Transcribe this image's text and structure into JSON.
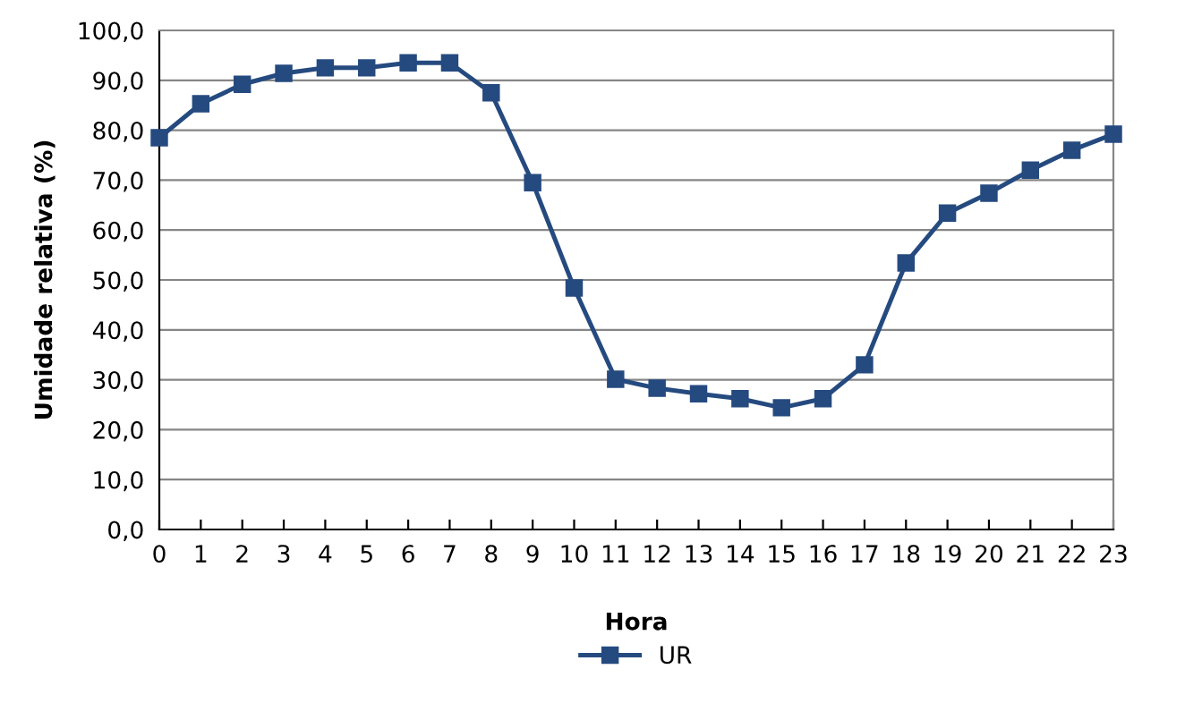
{
  "chart_data": {
    "type": "line",
    "xlabel": "Hora",
    "ylabel": "Umidade relativa (%)",
    "x": [
      0,
      1,
      2,
      3,
      4,
      5,
      6,
      7,
      8,
      9,
      10,
      11,
      12,
      13,
      14,
      15,
      16,
      17,
      18,
      19,
      20,
      21,
      22,
      23
    ],
    "series": [
      {
        "name": "UR",
        "color": "#254a7f",
        "values": [
          78.5,
          85.3,
          89.2,
          91.4,
          92.5,
          92.5,
          93.5,
          93.5,
          87.5,
          69.5,
          48.4,
          30.1,
          28.3,
          27.2,
          26.2,
          24.4,
          26.2,
          33.0,
          53.4,
          63.4,
          67.4,
          72.0,
          76.0,
          79.2
        ]
      }
    ],
    "xlim": [
      0,
      23
    ],
    "xticks": [
      0,
      1,
      2,
      3,
      4,
      5,
      6,
      7,
      8,
      9,
      10,
      11,
      12,
      13,
      14,
      15,
      16,
      17,
      18,
      19,
      20,
      21,
      22,
      23
    ],
    "ylim": [
      0,
      100
    ],
    "yticks": [
      {
        "value": 0,
        "label": "0,0"
      },
      {
        "value": 10,
        "label": "10,0"
      },
      {
        "value": 20,
        "label": "20,0"
      },
      {
        "value": 30,
        "label": "30,0"
      },
      {
        "value": 40,
        "label": "40,0"
      },
      {
        "value": 50,
        "label": "50,0"
      },
      {
        "value": 60,
        "label": "60,0"
      },
      {
        "value": 70,
        "label": "70,0"
      },
      {
        "value": 80,
        "label": "80,0"
      },
      {
        "value": 90,
        "label": "90,0"
      },
      {
        "value": 100,
        "label": "100,0"
      }
    ],
    "grid": "y",
    "legend": "bottom",
    "marker": "square",
    "line_style": "solid"
  }
}
